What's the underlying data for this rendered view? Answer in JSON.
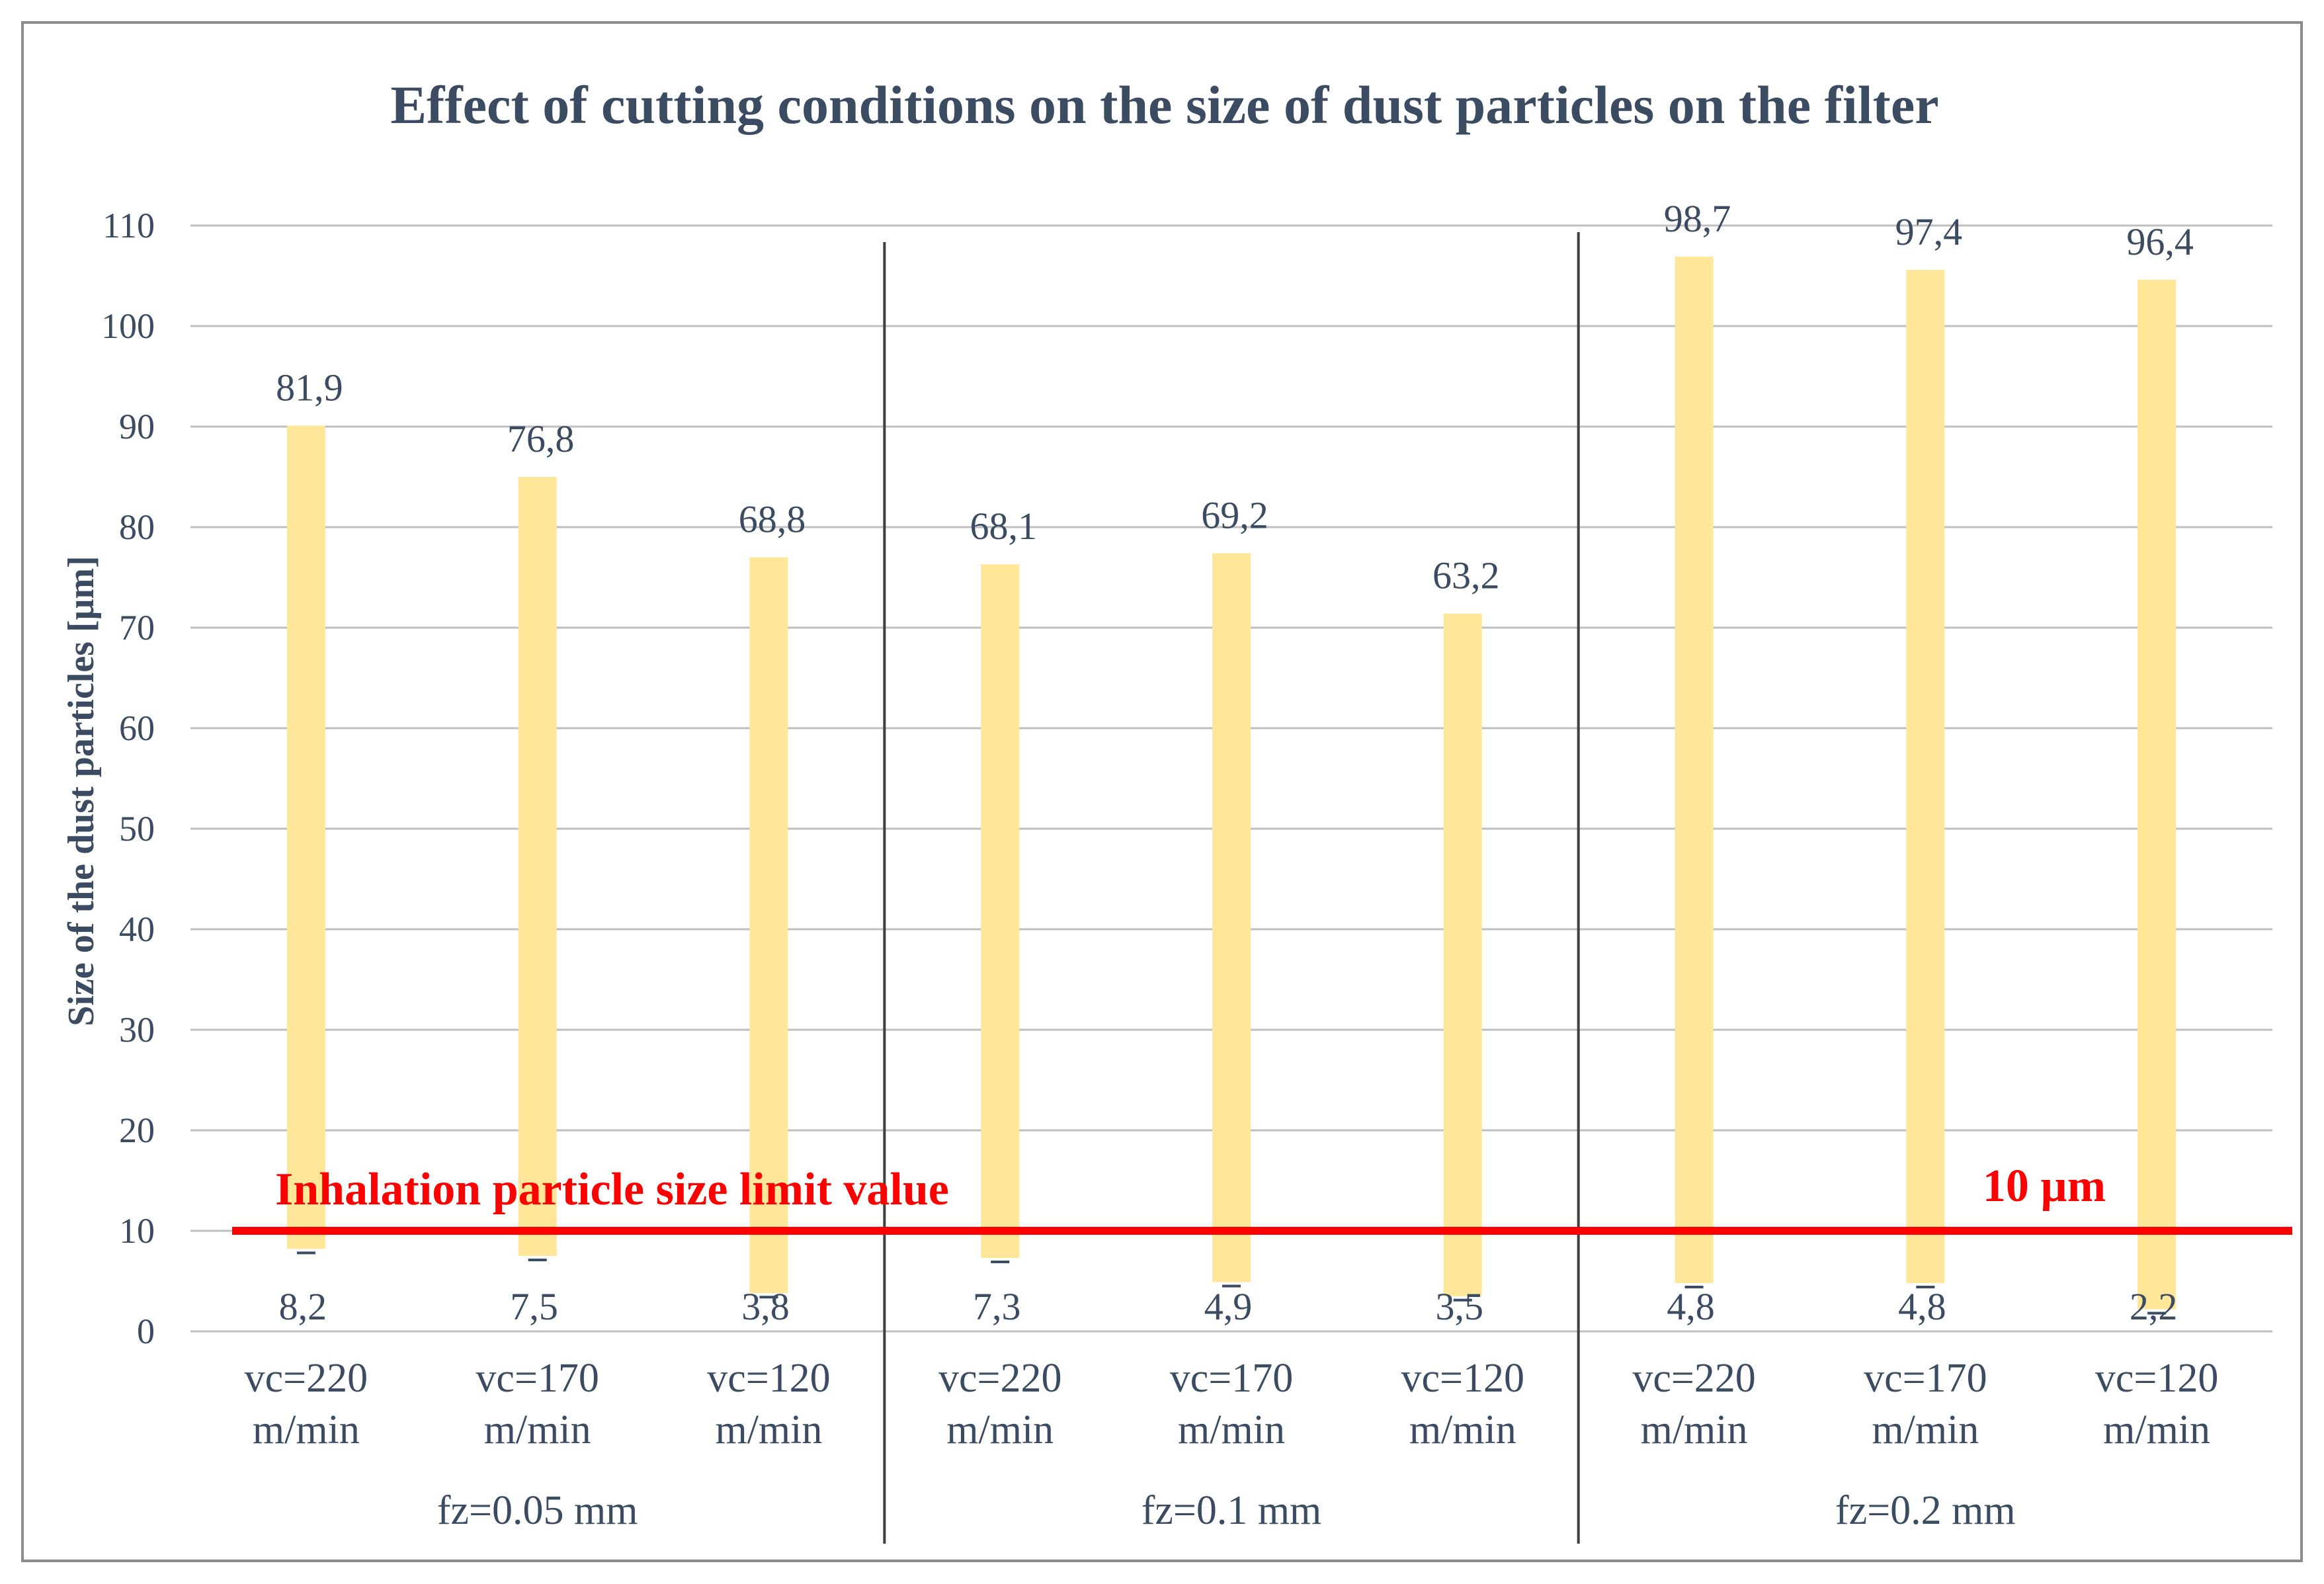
{
  "chart_data": {
    "type": "bar",
    "subtype": "floating-range",
    "title": "Effect of cutting conditions on the size of dust particles on the filter",
    "ylabel": "Size of the dust particles [μm]",
    "xlabel": "",
    "ylim": [
      0,
      110
    ],
    "yticks": [
      0,
      10,
      20,
      30,
      40,
      50,
      60,
      70,
      80,
      90,
      100,
      110
    ],
    "grid": true,
    "groups": [
      {
        "label": "fz=0.05 mm",
        "bars": [
          {
            "line1": "vc=220",
            "line2": "m/min",
            "min": 8.2,
            "max": 81.9
          },
          {
            "line1": "vc=170",
            "line2": "m/min",
            "min": 7.5,
            "max": 76.8
          },
          {
            "line1": "vc=120",
            "line2": "m/min",
            "min": 3.8,
            "max": 68.8
          }
        ]
      },
      {
        "label": "fz=0.1 mm",
        "bars": [
          {
            "line1": "vc=220",
            "line2": "m/min",
            "min": 7.3,
            "max": 68.1
          },
          {
            "line1": "vc=170",
            "line2": "m/min",
            "min": 4.9,
            "max": 69.2
          },
          {
            "line1": "vc=120",
            "line2": "m/min",
            "min": 3.5,
            "max": 63.2
          }
        ]
      },
      {
        "label": "fz=0.2 mm",
        "bars": [
          {
            "line1": "vc=220",
            "line2": "m/min",
            "min": 4.8,
            "max": 98.7
          },
          {
            "line1": "vc=170",
            "line2": "m/min",
            "min": 4.8,
            "max": 97.4
          },
          {
            "line1": "vc=120",
            "line2": "m/min",
            "min": 2.2,
            "max": 96.4
          }
        ]
      }
    ],
    "min_labels": [
      "8,2",
      "7,5",
      "3,8",
      "7,3",
      "4,9",
      "3,5",
      "4,8",
      "4,8",
      "2,2"
    ],
    "max_labels": [
      "81,9",
      "76,8",
      "68,8",
      "68,1",
      "69,2",
      "63,2",
      "98,7",
      "97,4",
      "96,4"
    ],
    "limit_line": {
      "value": 10,
      "label": "Inhalation particle size limit value",
      "value_label": "10 µm",
      "color": "#ff0000"
    },
    "bar_color": "#ffe699",
    "text_color": "#3b4b61",
    "grid_color": "#bfbfbf"
  }
}
